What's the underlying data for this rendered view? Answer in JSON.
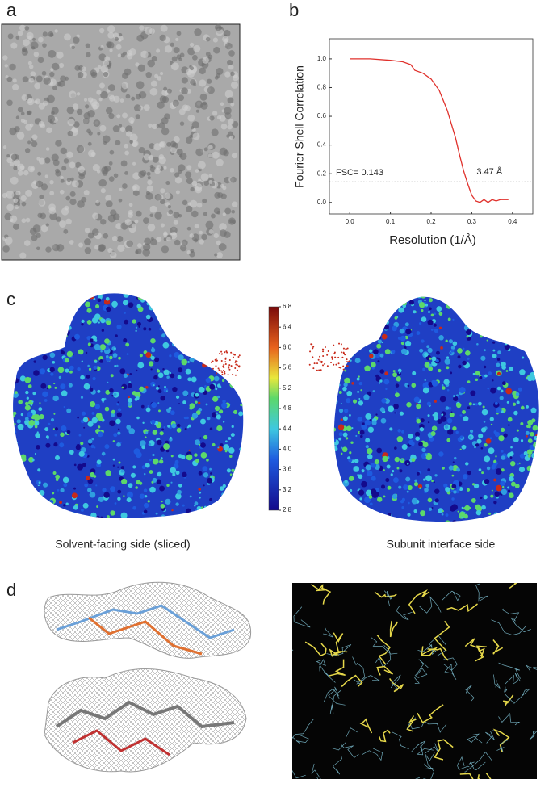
{
  "panels": {
    "a": {
      "label": "a"
    },
    "b": {
      "label": "b"
    },
    "c": {
      "label": "c",
      "caption_left": "Solvent-facing side (sliced)",
      "caption_right": "Subunit interface side",
      "colorbar": {
        "lim": [
          2.8,
          6.8
        ],
        "ticks": [
          2.8,
          3.2,
          3.6,
          {
            "value": 4,
            "label": "4.0"
          },
          4.4,
          4.8,
          5.2,
          5.6,
          {
            "value": 6,
            "label": "6.0"
          },
          6.4,
          6.8
        ]
      }
    },
    "d": {
      "label": "d"
    }
  },
  "chart_data": {
    "type": "line",
    "x_label": "Resolution (1/Å)",
    "y_label": "Fourier Shell Correlation",
    "x": [
      0.0,
      0.05,
      0.1,
      0.13,
      0.15,
      0.16,
      0.18,
      0.2,
      0.22,
      0.24,
      0.26,
      0.27,
      0.28,
      0.29,
      0.3,
      0.31,
      0.32,
      0.33,
      0.34,
      0.35,
      0.36,
      0.37,
      0.38,
      0.39
    ],
    "series": [
      {
        "name": "FSC",
        "color": "#e0312c",
        "values": [
          1.0,
          1.0,
          0.99,
          0.98,
          0.96,
          0.92,
          0.9,
          0.86,
          0.78,
          0.64,
          0.45,
          0.33,
          0.22,
          0.13,
          0.05,
          0.01,
          0.0,
          0.02,
          0.0,
          0.02,
          0.01,
          0.02,
          0.02,
          0.02
        ]
      }
    ],
    "xlim": [
      -0.05,
      0.45
    ],
    "xticks": [
      {
        "value": 0,
        "label": "0.0"
      },
      0.1,
      0.2,
      0.3,
      0.4
    ],
    "ylim": [
      -0.08,
      1.14
    ],
    "yticks": [
      {
        "value": 0,
        "label": "0.0"
      },
      0.2,
      0.4,
      0.6,
      0.8,
      {
        "value": 1,
        "label": "1.0"
      }
    ],
    "threshold": {
      "value": 0.143,
      "label": "FSC= 0.143"
    },
    "resolution_label": "3.47 Å"
  }
}
